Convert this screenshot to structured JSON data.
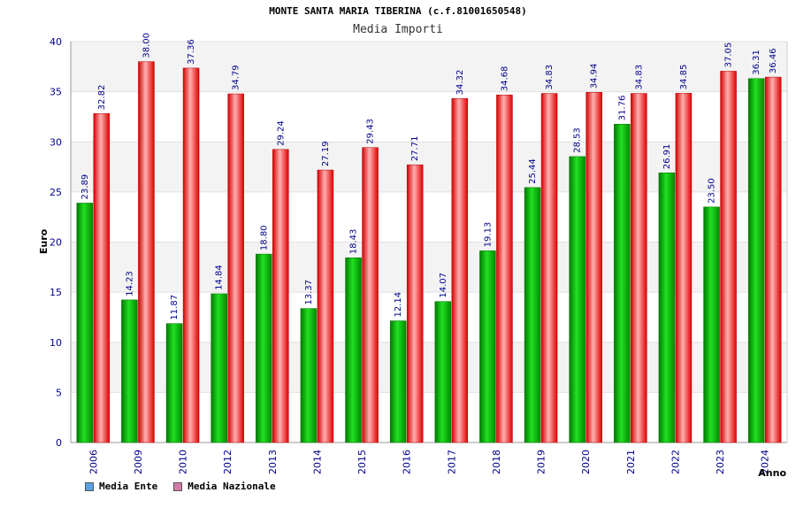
{
  "chart_data": {
    "type": "bar",
    "title": "MONTE SANTA MARIA TIBERINA (c.f.81001650548)",
    "subtitle": "Media Importi",
    "xlabel": "Anno",
    "ylabel": "Euro",
    "ylim": [
      0,
      40
    ],
    "yticks": [
      0,
      5,
      10,
      15,
      20,
      25,
      30,
      35,
      40
    ],
    "grid": true,
    "legend_position": "bottom-left",
    "categories": [
      "2006",
      "2009",
      "2010",
      "2012",
      "2013",
      "2014",
      "2015",
      "2016",
      "2017",
      "2018",
      "2019",
      "2020",
      "2021",
      "2022",
      "2023",
      "2024"
    ],
    "series": [
      {
        "name": "Media Ente",
        "color": "#00b000",
        "legend_color": "#5aa0e6",
        "values": [
          23.89,
          14.23,
          11.87,
          14.84,
          18.8,
          13.37,
          18.43,
          12.14,
          14.07,
          19.13,
          25.44,
          28.53,
          31.76,
          26.91,
          23.5,
          36.31
        ],
        "labels": [
          "23.89",
          "14.23",
          "11.87",
          "14.84",
          "18.80",
          "13.37",
          "18.43",
          "12.14",
          "14.07",
          "19.13",
          "25.44",
          "28.53",
          "31.76",
          "26.91",
          "23.50",
          "36.31"
        ]
      },
      {
        "name": "Media Nazionale",
        "color": "#e00000",
        "legend_color": "#d67aa8",
        "values": [
          32.82,
          38.0,
          37.36,
          34.79,
          29.24,
          27.19,
          29.43,
          27.71,
          34.32,
          34.68,
          34.83,
          34.94,
          34.83,
          34.85,
          37.05,
          36.46
        ],
        "labels": [
          "32.82",
          "38.00",
          "37.36",
          "34.79",
          "29.24",
          "27.19",
          "29.43",
          "27.71",
          "34.32",
          "34.68",
          "34.83",
          "34.94",
          "34.83",
          "34.85",
          "37.05",
          "36.46"
        ]
      }
    ]
  }
}
